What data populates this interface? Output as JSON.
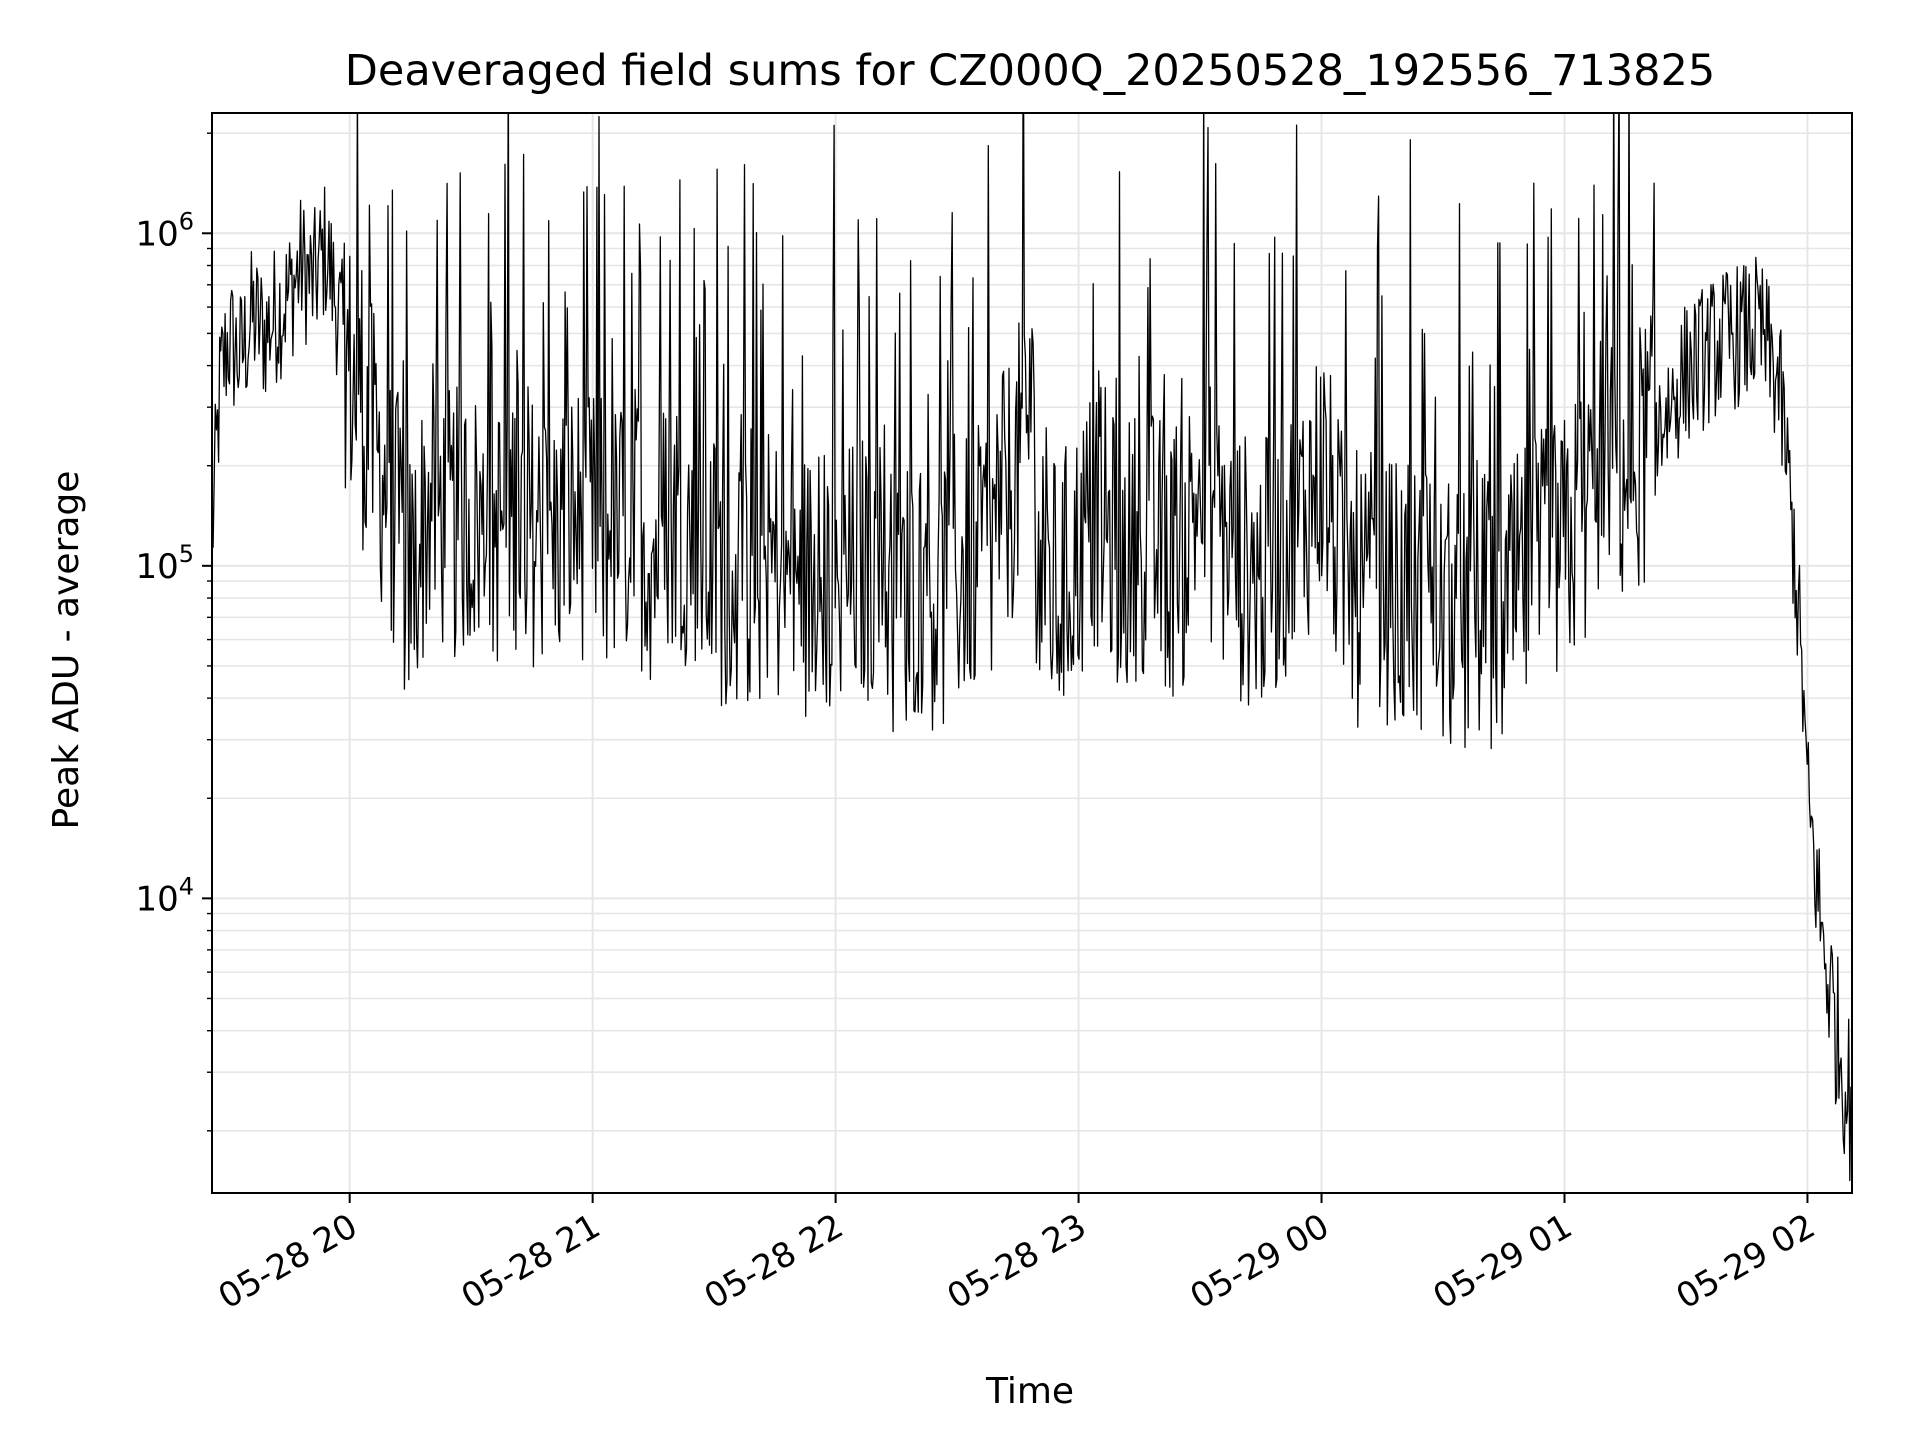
{
  "chart_data": {
    "type": "line",
    "title": "Deaveraged field sums for CZ000Q_20250528_192556_713825",
    "xlabel": "Time",
    "ylabel": "Peak ADU - average",
    "yscale": "log",
    "grid": true,
    "x_range": [
      "2025-05-28T19:26",
      "2025-05-29T02:11"
    ],
    "ylim": [
      1300,
      2300000
    ],
    "x_ticks": [
      {
        "value": "2025-05-28T20:00",
        "label": "05-28 20"
      },
      {
        "value": "2025-05-28T21:00",
        "label": "05-28 21"
      },
      {
        "value": "2025-05-28T22:00",
        "label": "05-28 22"
      },
      {
        "value": "2025-05-28T23:00",
        "label": "05-28 23"
      },
      {
        "value": "2025-05-29T00:00",
        "label": "05-29 00"
      },
      {
        "value": "2025-05-29T01:00",
        "label": "05-29 01"
      },
      {
        "value": "2025-05-29T02:00",
        "label": "05-29 02"
      }
    ],
    "y_ticks": [
      {
        "value": 10000,
        "base": "10",
        "exp": "4"
      },
      {
        "value": 100000,
        "base": "10",
        "exp": "5"
      },
      {
        "value": 1000000,
        "base": "10",
        "exp": "6"
      }
    ],
    "series": [
      {
        "color": "#000000",
        "points": [
          [
            "2025-05-28T19:26",
            120000
          ],
          [
            "2025-05-28T19:28",
            350000
          ],
          [
            "2025-05-28T19:30",
            480000
          ],
          [
            "2025-05-28T19:33",
            420000
          ],
          [
            "2025-05-28T19:36",
            560000
          ],
          [
            "2025-05-28T19:39",
            500000
          ],
          [
            "2025-05-28T19:42",
            580000
          ],
          [
            "2025-05-28T19:45",
            650000
          ],
          [
            "2025-05-28T19:48",
            800000
          ],
          [
            "2025-05-28T19:51",
            700000
          ],
          [
            "2025-05-28T19:54",
            900000
          ],
          [
            "2025-05-28T19:57",
            600000
          ],
          [
            "2025-05-28T20:00",
            380000
          ],
          [
            "2025-05-28T20:05",
            250000
          ],
          [
            "2025-05-28T20:10",
            160000
          ],
          [
            "2025-05-28T20:15",
            90000
          ],
          [
            "2025-05-28T20:20",
            160000
          ],
          [
            "2025-05-28T20:25",
            130000
          ],
          [
            "2025-05-28T20:30",
            140000
          ],
          [
            "2025-05-28T20:35",
            120000
          ],
          [
            "2025-05-28T20:40",
            150000
          ],
          [
            "2025-05-28T20:45",
            130000
          ],
          [
            "2025-05-28T20:50",
            120000
          ],
          [
            "2025-05-28T20:55",
            140000
          ],
          [
            "2025-05-28T21:00",
            130000
          ],
          [
            "2025-05-28T21:05",
            120000
          ],
          [
            "2025-05-28T21:10",
            140000
          ],
          [
            "2025-05-28T21:15",
            110000
          ],
          [
            "2025-05-28T21:20",
            150000
          ],
          [
            "2025-05-28T21:25",
            120000
          ],
          [
            "2025-05-28T21:30",
            100000
          ],
          [
            "2025-05-28T21:35",
            90000
          ],
          [
            "2025-05-28T21:40",
            95000
          ],
          [
            "2025-05-28T21:45",
            100000
          ],
          [
            "2025-05-28T21:50",
            85000
          ],
          [
            "2025-05-28T21:55",
            90000
          ],
          [
            "2025-05-28T22:00",
            85000
          ],
          [
            "2025-05-28T22:05",
            95000
          ],
          [
            "2025-05-28T22:10",
            100000
          ],
          [
            "2025-05-28T22:15",
            80000
          ],
          [
            "2025-05-28T22:20",
            90000
          ],
          [
            "2025-05-28T22:25",
            80000
          ],
          [
            "2025-05-28T22:30",
            90000
          ],
          [
            "2025-05-28T22:35",
            110000
          ],
          [
            "2025-05-28T22:40",
            130000
          ],
          [
            "2025-05-28T22:45",
            200000
          ],
          [
            "2025-05-28T22:48",
            350000
          ],
          [
            "2025-05-28T22:50",
            100000
          ],
          [
            "2025-05-28T22:55",
            80000
          ],
          [
            "2025-05-28T23:00",
            110000
          ],
          [
            "2025-05-28T23:05",
            150000
          ],
          [
            "2025-05-28T23:10",
            100000
          ],
          [
            "2025-05-28T23:15",
            120000
          ],
          [
            "2025-05-28T23:20",
            110000
          ],
          [
            "2025-05-28T23:25",
            100000
          ],
          [
            "2025-05-28T23:30",
            180000
          ],
          [
            "2025-05-28T23:35",
            130000
          ],
          [
            "2025-05-28T23:40",
            100000
          ],
          [
            "2025-05-28T23:45",
            90000
          ],
          [
            "2025-05-28T23:50",
            110000
          ],
          [
            "2025-05-28T23:55",
            140000
          ],
          [
            "2025-05-29T00:00",
            200000
          ],
          [
            "2025-05-29T00:05",
            100000
          ],
          [
            "2025-05-29T00:10",
            80000
          ],
          [
            "2025-05-29T00:15",
            90000
          ],
          [
            "2025-05-29T00:20",
            75000
          ],
          [
            "2025-05-29T00:25",
            80000
          ],
          [
            "2025-05-29T00:30",
            70000
          ],
          [
            "2025-05-29T00:35",
            65000
          ],
          [
            "2025-05-29T00:40",
            75000
          ],
          [
            "2025-05-29T00:45",
            70000
          ],
          [
            "2025-05-29T00:50",
            90000
          ],
          [
            "2025-05-29T00:55",
            100000
          ],
          [
            "2025-05-29T01:00",
            110000
          ],
          [
            "2025-05-29T01:05",
            150000
          ],
          [
            "2025-05-29T01:10",
            200000
          ],
          [
            "2025-05-29T01:15",
            190000
          ],
          [
            "2025-05-29T01:20",
            230000
          ],
          [
            "2025-05-29T01:25",
            290000
          ],
          [
            "2025-05-29T01:30",
            380000
          ],
          [
            "2025-05-29T01:35",
            430000
          ],
          [
            "2025-05-29T01:40",
            480000
          ],
          [
            "2025-05-29T01:45",
            500000
          ],
          [
            "2025-05-29T01:48",
            520000
          ],
          [
            "2025-05-29T01:50",
            450000
          ],
          [
            "2025-05-29T01:53",
            350000
          ],
          [
            "2025-05-29T01:55",
            200000
          ],
          [
            "2025-05-29T01:57",
            100000
          ],
          [
            "2025-05-29T01:59",
            40000
          ],
          [
            "2025-05-29T02:00",
            20000
          ],
          [
            "2025-05-29T02:02",
            12000
          ],
          [
            "2025-05-29T02:04",
            7000
          ],
          [
            "2025-05-29T02:06",
            5000
          ],
          [
            "2025-05-29T02:08",
            3500
          ],
          [
            "2025-05-29T02:10",
            2600
          ],
          [
            "2025-05-29T02:11",
            2400
          ]
        ]
      }
    ]
  }
}
